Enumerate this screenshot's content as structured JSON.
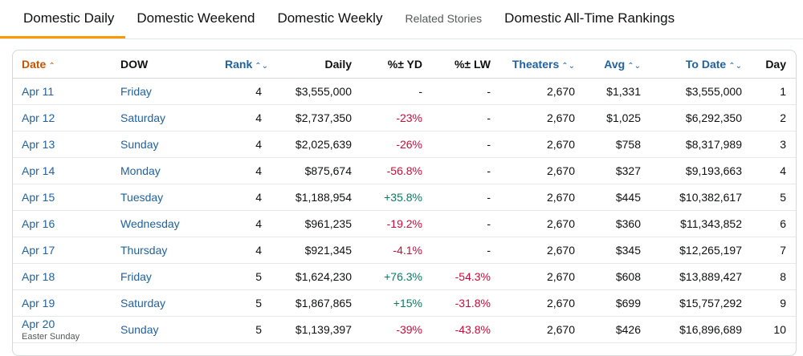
{
  "tabs": [
    {
      "label": "Domestic Daily",
      "active": true
    },
    {
      "label": "Domestic Weekend"
    },
    {
      "label": "Domestic Weekly"
    },
    {
      "label": "Related Stories"
    },
    {
      "label": "Domestic All-Time Rankings"
    }
  ],
  "columns": {
    "date": "Date",
    "dow": "DOW",
    "rank": "Rank",
    "daily": "Daily",
    "yd": "%± YD",
    "lw": "%± LW",
    "theaters": "Theaters",
    "avg": "Avg",
    "todate": "To Date",
    "day": "Day"
  },
  "icons": {
    "sort_asc": "⌃",
    "sort_both": "⌃⌄"
  },
  "colors": {
    "accent": "#ff9900",
    "link": "#2162a1",
    "negative": "#cc0c39",
    "positive": "#067d62",
    "sorted": "#c45500"
  },
  "rows": [
    {
      "date": "Apr 11",
      "dow": "Friday",
      "rank": "4",
      "daily": "$3,555,000",
      "yd": "-",
      "lw": "-",
      "theaters": "2,670",
      "avg": "$1,331",
      "todate": "$3,555,000",
      "day": "1"
    },
    {
      "date": "Apr 12",
      "dow": "Saturday",
      "rank": "4",
      "daily": "$2,737,350",
      "yd": "-23%",
      "lw": "-",
      "theaters": "2,670",
      "avg": "$1,025",
      "todate": "$6,292,350",
      "day": "2"
    },
    {
      "date": "Apr 13",
      "dow": "Sunday",
      "rank": "4",
      "daily": "$2,025,639",
      "yd": "-26%",
      "lw": "-",
      "theaters": "2,670",
      "avg": "$758",
      "todate": "$8,317,989",
      "day": "3"
    },
    {
      "date": "Apr 14",
      "dow": "Monday",
      "rank": "4",
      "daily": "$875,674",
      "yd": "-56.8%",
      "lw": "-",
      "theaters": "2,670",
      "avg": "$327",
      "todate": "$9,193,663",
      "day": "4"
    },
    {
      "date": "Apr 15",
      "dow": "Tuesday",
      "rank": "4",
      "daily": "$1,188,954",
      "yd": "+35.8%",
      "lw": "-",
      "theaters": "2,670",
      "avg": "$445",
      "todate": "$10,382,617",
      "day": "5"
    },
    {
      "date": "Apr 16",
      "dow": "Wednesday",
      "rank": "4",
      "daily": "$961,235",
      "yd": "-19.2%",
      "lw": "-",
      "theaters": "2,670",
      "avg": "$360",
      "todate": "$11,343,852",
      "day": "6"
    },
    {
      "date": "Apr 17",
      "dow": "Thursday",
      "rank": "4",
      "daily": "$921,345",
      "yd": "-4.1%",
      "lw": "-",
      "theaters": "2,670",
      "avg": "$345",
      "todate": "$12,265,197",
      "day": "7"
    },
    {
      "date": "Apr 18",
      "dow": "Friday",
      "rank": "5",
      "daily": "$1,624,230",
      "yd": "+76.3%",
      "lw": "-54.3%",
      "theaters": "2,670",
      "avg": "$608",
      "todate": "$13,889,427",
      "day": "8"
    },
    {
      "date": "Apr 19",
      "dow": "Saturday",
      "rank": "5",
      "daily": "$1,867,865",
      "yd": "+15%",
      "lw": "-31.8%",
      "theaters": "2,670",
      "avg": "$699",
      "todate": "$15,757,292",
      "day": "9"
    },
    {
      "date": "Apr 20",
      "dow": "Sunday",
      "rank": "5",
      "daily": "$1,139,397",
      "yd": "-39%",
      "lw": "-43.8%",
      "theaters": "2,670",
      "avg": "$426",
      "todate": "$16,896,689",
      "day": "10",
      "note": "Easter Sunday"
    }
  ]
}
